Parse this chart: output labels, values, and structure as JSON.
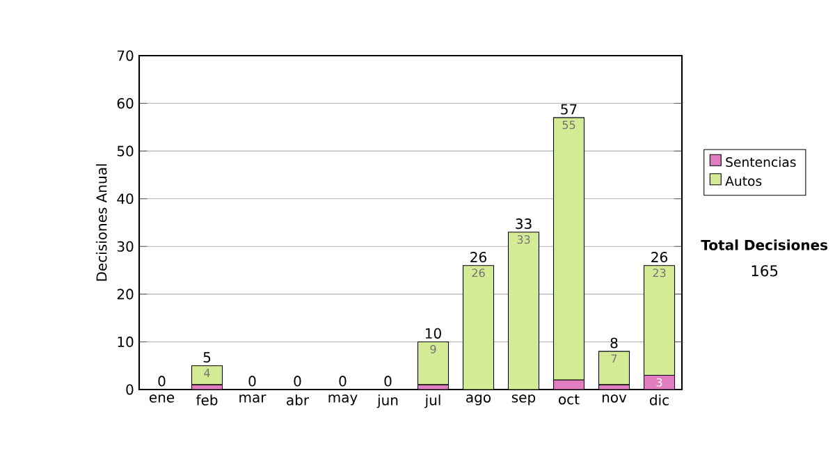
{
  "chart_data": {
    "type": "bar",
    "stacked": true,
    "ylabel": "Decisiones Anual",
    "categories": [
      "ene",
      "feb",
      "mar",
      "abr",
      "may",
      "jun",
      "jul",
      "ago",
      "sep",
      "oct",
      "nov",
      "dic"
    ],
    "series": [
      {
        "name": "Sentencias",
        "color": "#e07cc0",
        "values": [
          0,
          1,
          0,
          0,
          0,
          0,
          1,
          0,
          0,
          2,
          1,
          3
        ],
        "value_labels": [
          null,
          null,
          null,
          null,
          null,
          null,
          null,
          null,
          null,
          null,
          null,
          "3"
        ]
      },
      {
        "name": "Autos",
        "color": "#d4ea94",
        "values": [
          0,
          4,
          0,
          0,
          0,
          0,
          9,
          26,
          33,
          55,
          7,
          23
        ],
        "value_labels": [
          null,
          "4",
          null,
          null,
          null,
          null,
          "9",
          "26",
          "33",
          "55",
          "7",
          "23"
        ]
      }
    ],
    "totals": [
      "0",
      "5",
      "0",
      "0",
      "0",
      "0",
      "10",
      "26",
      "33",
      "57",
      "8",
      "26"
    ],
    "ylim": [
      0,
      70
    ],
    "yticks": [
      0,
      10,
      20,
      30,
      40,
      50,
      60,
      70
    ],
    "grid": "y",
    "legend": "right",
    "annotations": [
      "Total Decisiones",
      "165"
    ]
  }
}
